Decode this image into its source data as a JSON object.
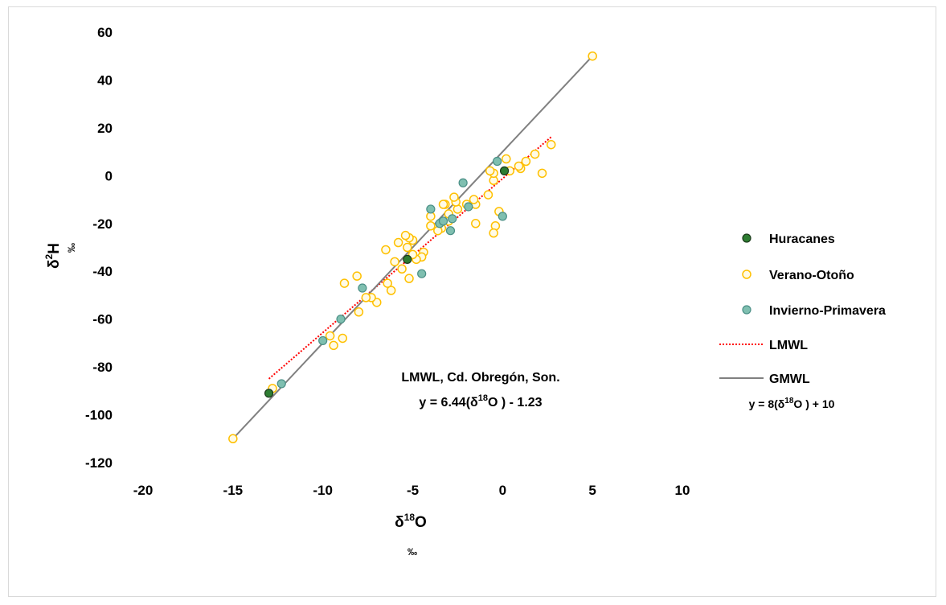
{
  "chart_data": {
    "type": "scatter",
    "xlabel": "δ18O",
    "xlabel_main": "δ",
    "xlabel_sup": "18",
    "xlabel_end": "O",
    "xunit": "‰",
    "ylabel_main": "δ",
    "ylabel_sup": "2",
    "ylabel_end": "H",
    "yunit": "‰",
    "xlim": [
      -20,
      10
    ],
    "ylim": [
      -120,
      60
    ],
    "xticks": [
      -20,
      -15,
      -10,
      -5,
      0,
      5,
      10
    ],
    "yticks": [
      60,
      40,
      20,
      0,
      -20,
      -40,
      -60,
      -80,
      -100,
      -120
    ],
    "grid": false,
    "legend_position": "right",
    "colors": {
      "huracanes_fill": "#2e7d32",
      "huracanes_edge": "#1b3a1b",
      "verano_edge": "#ffc000",
      "verano_fill": "#fffbe6",
      "invierno_fill": "#7fbfb0",
      "invierno_edge": "#4a8f86",
      "lmwl": "#ff0000",
      "gmwl": "#808080"
    },
    "series": [
      {
        "name": "Huracanes",
        "kind": "points",
        "points": [
          [
            -13.0,
            -91
          ],
          [
            -5.3,
            -35
          ],
          [
            0.1,
            2
          ]
        ]
      },
      {
        "name": "Verano-Otoño",
        "kind": "points",
        "points": [
          [
            -15.0,
            -110
          ],
          [
            5.0,
            50
          ],
          [
            2.7,
            13
          ],
          [
            2.2,
            1
          ],
          [
            1.8,
            9
          ],
          [
            1.3,
            6
          ],
          [
            1.0,
            3
          ],
          [
            0.9,
            4
          ],
          [
            0.4,
            2
          ],
          [
            0.2,
            7
          ],
          [
            -0.2,
            -15
          ],
          [
            -0.4,
            -21
          ],
          [
            -0.5,
            -24
          ],
          [
            -0.5,
            -2
          ],
          [
            -0.5,
            1
          ],
          [
            -0.7,
            2
          ],
          [
            -0.8,
            -8
          ],
          [
            -1.5,
            -20
          ],
          [
            -1.5,
            -12
          ],
          [
            -1.6,
            -10
          ],
          [
            -2.0,
            -12
          ],
          [
            -2.5,
            -14
          ],
          [
            -2.6,
            -11
          ],
          [
            -2.7,
            -9
          ],
          [
            -3.0,
            -19
          ],
          [
            -3.0,
            -16
          ],
          [
            -3.2,
            -12
          ],
          [
            -3.3,
            -12
          ],
          [
            -3.4,
            -22
          ],
          [
            -3.6,
            -23
          ],
          [
            -4.0,
            -21
          ],
          [
            -4.0,
            -17
          ],
          [
            -4.4,
            -32
          ],
          [
            -4.5,
            -34
          ],
          [
            -4.8,
            -35
          ],
          [
            -5.0,
            -33
          ],
          [
            -5.0,
            -27
          ],
          [
            -5.2,
            -26
          ],
          [
            -5.3,
            -30
          ],
          [
            -5.4,
            -25
          ],
          [
            -5.2,
            -43
          ],
          [
            -5.6,
            -39
          ],
          [
            -5.8,
            -28
          ],
          [
            -6.0,
            -36
          ],
          [
            -6.2,
            -48
          ],
          [
            -6.4,
            -45
          ],
          [
            -6.5,
            -31
          ],
          [
            -7.0,
            -53
          ],
          [
            -7.3,
            -51
          ],
          [
            -7.6,
            -51
          ],
          [
            -8.0,
            -57
          ],
          [
            -8.1,
            -42
          ],
          [
            -8.8,
            -45
          ],
          [
            -8.9,
            -68
          ],
          [
            -9.4,
            -71
          ],
          [
            -9.6,
            -67
          ],
          [
            -12.8,
            -89
          ]
        ]
      },
      {
        "name": "Invierno-Primavera",
        "kind": "points",
        "points": [
          [
            -12.3,
            -87
          ],
          [
            -10.0,
            -69
          ],
          [
            -9.0,
            -60
          ],
          [
            -7.8,
            -47
          ],
          [
            -4.5,
            -41
          ],
          [
            -4.0,
            -14
          ],
          [
            -3.5,
            -20
          ],
          [
            -3.3,
            -19
          ],
          [
            -2.9,
            -23
          ],
          [
            -2.8,
            -18
          ],
          [
            -2.2,
            -3
          ],
          [
            -1.9,
            -13
          ],
          [
            -0.3,
            6
          ],
          [
            0.0,
            -17
          ]
        ]
      },
      {
        "name": "LMWL",
        "kind": "line",
        "slope": 6.44,
        "intercept": -1.23,
        "x_range": [
          -13,
          2.7
        ]
      },
      {
        "name": "GMWL",
        "kind": "line",
        "slope": 8,
        "intercept": 10,
        "x_range": [
          -15,
          5
        ]
      }
    ],
    "annotations": {
      "lmwl_title": "LMWL, Cd. Obregón, Son.",
      "lmwl_eq_a": "y = 6.44(δ",
      "lmwl_eq_sup": "18",
      "lmwl_eq_b": "O ) - 1.23",
      "gmwl_eq_a": "y = 8(δ",
      "gmwl_eq_sup": "18",
      "gmwl_eq_b": "O ) + 10"
    }
  }
}
